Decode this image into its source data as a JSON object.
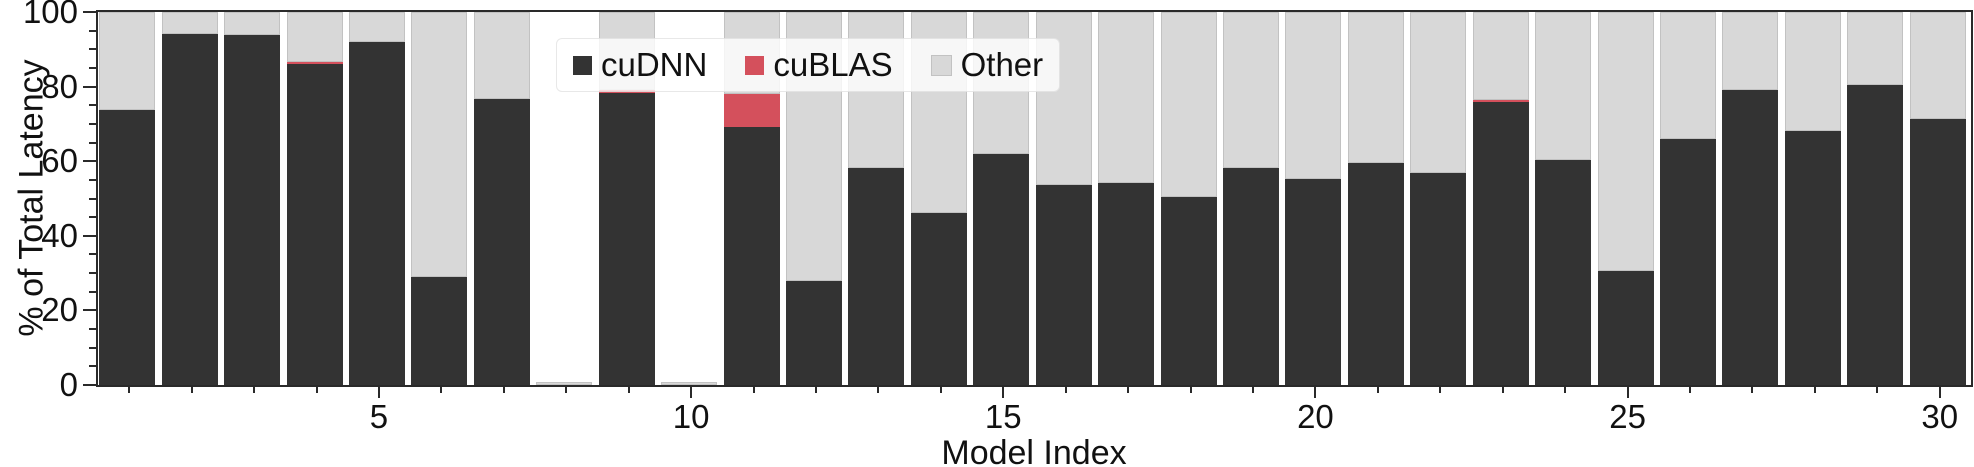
{
  "chart_data": {
    "type": "bar",
    "stacked": true,
    "xlabel": "Model Index",
    "ylabel": "% of Total Latency",
    "x": [
      1,
      2,
      3,
      4,
      5,
      6,
      7,
      8,
      9,
      10,
      11,
      12,
      13,
      14,
      15,
      16,
      17,
      18,
      19,
      20,
      21,
      22,
      23,
      24,
      25,
      26,
      27,
      28,
      29,
      30
    ],
    "series": [
      {
        "name": "cuDNN",
        "color": "#333333",
        "values": [
          73.7,
          94.2,
          93.8,
          86.0,
          92.0,
          28.9,
          76.6,
          0,
          78.2,
          0,
          69.3,
          28.0,
          58.2,
          46.1,
          62.0,
          53.7,
          54.1,
          50.4,
          58.2,
          55.3,
          59.6,
          56.9,
          75.8,
          60.2,
          30.6,
          65.9,
          79.0,
          68.1,
          80.5,
          71.4
        ]
      },
      {
        "name": "cuBLAS",
        "color": "#d4505c",
        "values": [
          0,
          0,
          0,
          0.7,
          0,
          0,
          0,
          0,
          0.8,
          0,
          8.7,
          0,
          0,
          0,
          0,
          0,
          0,
          0,
          0,
          0,
          0,
          0,
          0.7,
          0,
          0,
          0,
          0,
          0,
          0,
          0
        ]
      },
      {
        "name": "Other",
        "color": "#d8d8d8",
        "values": [
          26.3,
          5.8,
          6.2,
          13.3,
          8.0,
          71.1,
          23.4,
          0.7,
          21.0,
          0.7,
          22.0,
          72.0,
          41.8,
          53.9,
          38.0,
          46.3,
          45.9,
          49.6,
          41.8,
          44.7,
          40.4,
          43.1,
          23.5,
          39.8,
          69.4,
          34.1,
          21.0,
          31.9,
          19.5,
          28.6
        ]
      }
    ],
    "ylim": [
      0,
      100
    ],
    "y_major_ticks": [
      0,
      20,
      40,
      60,
      80,
      100
    ],
    "y_minor_step": 5,
    "x_major_ticks": [
      5,
      10,
      15,
      20,
      25,
      30
    ],
    "legend": {
      "position": "upper left of center",
      "entries": [
        "cuDNN",
        "cuBLAS",
        "Other"
      ]
    },
    "grid": false
  },
  "colors": {
    "spine": "#2a2a2a",
    "text": "#111111",
    "background": "#ffffff",
    "bar_edge": "#c2c2c2",
    "legend_background": "rgba(255,255,255,0.8)"
  }
}
